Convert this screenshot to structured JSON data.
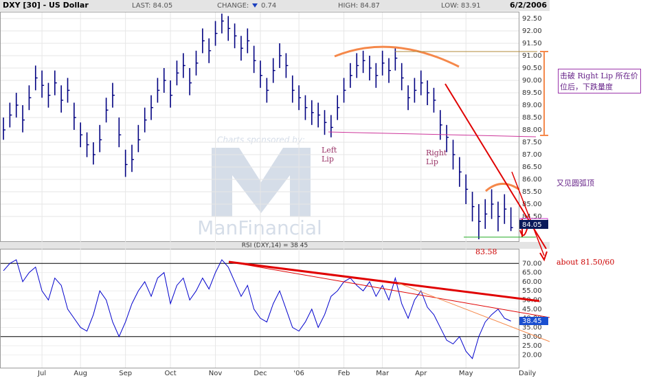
{
  "chart_data": {
    "type": "ohlc",
    "header": {
      "title": "DXY [30] - US Dollar",
      "last": "LAST: 84.05",
      "change_label": "CHANGE:",
      "change": "0.74",
      "high": "HIGH: 84.87",
      "low": "LOW: 83.91",
      "date": "6/2/2006"
    },
    "last_label": "84.05",
    "watermark": [
      "Charts sponsored by:",
      "ManFinancial"
    ],
    "xticks": [
      {
        "value": 6,
        "label": "Jul"
      },
      {
        "value": 12,
        "label": "Aug"
      },
      {
        "value": 19,
        "label": "Sep"
      },
      {
        "value": 26,
        "label": "Oct"
      },
      {
        "value": 33,
        "label": "Nov"
      },
      {
        "value": 40,
        "label": "Dec"
      },
      {
        "value": 46,
        "label": "'06"
      },
      {
        "value": 53,
        "label": "Feb"
      },
      {
        "value": 59,
        "label": "Mar"
      },
      {
        "value": 65,
        "label": "Apr"
      },
      {
        "value": 72,
        "label": "May"
      }
    ],
    "x_period": "Daily",
    "ylim": [
      83.5,
      92.75
    ],
    "yticks": [
      {
        "value": 84.5,
        "label": "84.50"
      },
      {
        "value": 85,
        "label": "85.00"
      },
      {
        "value": 85.5,
        "label": "85.50"
      },
      {
        "value": 86,
        "label": "86.00"
      },
      {
        "value": 86.5,
        "label": "86.50"
      },
      {
        "value": 87,
        "label": "87.00"
      },
      {
        "value": 87.5,
        "label": "87.50"
      },
      {
        "value": 88,
        "label": "88.00"
      },
      {
        "value": 88.5,
        "label": "88.50"
      },
      {
        "value": 89,
        "label": "89.00"
      },
      {
        "value": 89.5,
        "label": "89.50"
      },
      {
        "value": 90,
        "label": "90.00"
      },
      {
        "value": 90.5,
        "label": "90.50"
      },
      {
        "value": 91,
        "label": "91.00"
      },
      {
        "value": 91.5,
        "label": "91.50"
      },
      {
        "value": 92,
        "label": "92.00"
      },
      {
        "value": 92.5,
        "label": "92.50"
      }
    ],
    "color": "#000080",
    "high": [
      88.5,
      89.1,
      89.5,
      89.0,
      89.8,
      90.6,
      90.4,
      89.9,
      90.4,
      89.8,
      90.1,
      89.1,
      88.3,
      87.9,
      87.5,
      88.2,
      89.3,
      89.9,
      88.5,
      87.2,
      87.4,
      88.2,
      88.9,
      89.4,
      90.1,
      90.5,
      90.0,
      90.8,
      91.1,
      90.5,
      91.2,
      92.1,
      91.7,
      92.4,
      92.7,
      92.6,
      92.3,
      91.8,
      92.1,
      91.4,
      90.8,
      90.1,
      90.9,
      91.5,
      91.1,
      90.2,
      89.8,
      89.4,
      89.2,
      89.1,
      88.8,
      88.6,
      89.4,
      90.1,
      90.7,
      91.1,
      91.2,
      91.0,
      90.7,
      91.2,
      90.9,
      91.3,
      90.7,
      89.8,
      90.1,
      90.4,
      90.0,
      89.7,
      88.8,
      88.2,
      87.6,
      86.9,
      86.2,
      85.5,
      85.0,
      85.2,
      85.6,
      85.1,
      85.4,
      84.87
    ],
    "low": [
      87.6,
      88.1,
      88.5,
      87.9,
      88.8,
      89.6,
      89.3,
      88.9,
      89.4,
      88.7,
      89.1,
      88.0,
      87.3,
      86.9,
      86.6,
      87.1,
      88.3,
      88.9,
      87.3,
      86.1,
      86.3,
      87.1,
      87.9,
      88.4,
      89.1,
      89.5,
      88.9,
      89.8,
      90.1,
      89.4,
      90.2,
      91.1,
      90.7,
      91.4,
      91.9,
      91.6,
      91.3,
      90.8,
      91.1,
      90.3,
      89.7,
      89.1,
      89.9,
      90.5,
      90.1,
      89.1,
      88.8,
      88.4,
      88.2,
      88.1,
      87.8,
      87.7,
      88.4,
      89.1,
      89.7,
      90.1,
      90.3,
      90.0,
      89.7,
      90.2,
      89.9,
      90.4,
      89.6,
      88.8,
      89.1,
      89.4,
      89.0,
      88.7,
      87.6,
      87.1,
      86.4,
      85.7,
      85.0,
      84.3,
      83.58,
      84.0,
      84.4,
      83.9,
      84.2,
      83.91
    ],
    "close": [
      88.0,
      88.6,
      89.0,
      88.4,
      89.3,
      90.1,
      89.8,
      89.4,
      89.9,
      89.2,
      89.6,
      88.5,
      87.8,
      87.4,
      87.0,
      87.6,
      88.8,
      89.4,
      87.8,
      86.6,
      86.8,
      87.6,
      88.4,
      88.9,
      89.6,
      90.0,
      89.4,
      90.3,
      90.6,
      89.9,
      90.7,
      91.6,
      91.2,
      91.9,
      92.4,
      92.1,
      91.8,
      91.3,
      91.6,
      90.8,
      90.2,
      89.6,
      90.4,
      91.0,
      90.6,
      89.6,
      89.3,
      88.9,
      88.7,
      88.6,
      88.3,
      88.1,
      88.9,
      89.6,
      90.2,
      90.6,
      90.8,
      90.5,
      90.2,
      90.7,
      90.4,
      90.9,
      90.1,
      89.3,
      89.6,
      89.9,
      89.5,
      89.2,
      88.2,
      87.7,
      87.0,
      86.3,
      85.6,
      84.9,
      84.3,
      84.6,
      85.0,
      84.5,
      84.8,
      84.05
    ],
    "rsi": {
      "title": "RSI (DXY,14) = 38.45",
      "last_label": "38.45",
      "color": "#0000cc",
      "ylim": [
        13,
        78
      ],
      "yticks": [
        {
          "value": 20,
          "label": "20.00"
        },
        {
          "value": 25,
          "label": "25.00"
        },
        {
          "value": 30,
          "label": "30.00"
        },
        {
          "value": 35,
          "label": "35.00"
        },
        {
          "value": 40,
          "label": "40.00"
        },
        {
          "value": 45,
          "label": "45.00"
        },
        {
          "value": 50,
          "label": "50.00"
        },
        {
          "value": 55,
          "label": "55.00"
        },
        {
          "value": 60,
          "label": "60.00"
        },
        {
          "value": 65,
          "label": "65.00"
        },
        {
          "value": 70,
          "label": "70.00"
        }
      ],
      "levels": [
        70,
        30
      ],
      "values": [
        66,
        70,
        72,
        60,
        65,
        68,
        55,
        50,
        62,
        58,
        45,
        40,
        35,
        33,
        42,
        55,
        50,
        38,
        30,
        38,
        48,
        55,
        60,
        52,
        62,
        65,
        48,
        58,
        62,
        50,
        55,
        62,
        56,
        65,
        72,
        68,
        60,
        52,
        58,
        45,
        40,
        38,
        48,
        55,
        45,
        35,
        33,
        38,
        45,
        35,
        42,
        52,
        55,
        60,
        62,
        58,
        55,
        60,
        52,
        58,
        50,
        62,
        48,
        40,
        50,
        55,
        46,
        42,
        35,
        28,
        26,
        30,
        22,
        18,
        30,
        38,
        42,
        45,
        40,
        38.45
      ]
    },
    "annotations": {
      "left_lip": "Left Lip",
      "right_lip": "Right Lip",
      "break_note": "击破 Right Lip 所在价位后，下跌量度",
      "round_top": "又见圆弧顶",
      "target": "about  81.50/60",
      "low_mark": "83.58"
    }
  }
}
